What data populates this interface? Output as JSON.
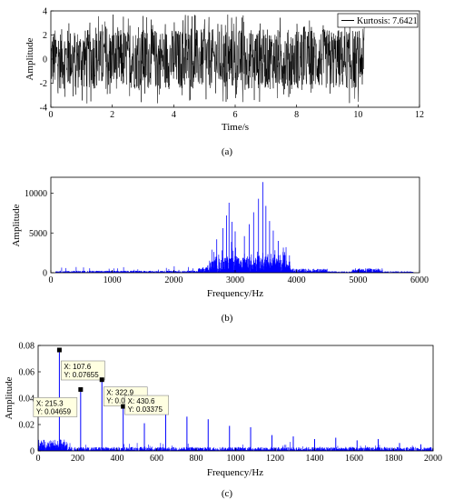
{
  "chart_data": [
    {
      "id": "a",
      "type": "line",
      "panel_label": "(a)",
      "xlabel": "Time/s",
      "ylabel": "Amplitude",
      "xlim": [
        0,
        12
      ],
      "ylim": [
        -4,
        4
      ],
      "xticks": [
        "0",
        "2",
        "4",
        "6",
        "8",
        "10",
        "12"
      ],
      "yticks": [
        "-4",
        "-2",
        "0",
        "2",
        "4"
      ],
      "signal": {
        "t_start": 0,
        "t_end": 10.2,
        "envelope_typical": 2.5,
        "envelope_peak": 3.7,
        "color": "#000000"
      },
      "legend": {
        "text": "Kurtosis: 7.6421",
        "position": "top-right"
      },
      "grid": false
    },
    {
      "id": "b",
      "type": "line",
      "panel_label": "(b)",
      "xlabel": "Frequency/Hz",
      "ylabel": "Amplitude",
      "xlim": [
        0,
        6000
      ],
      "ylim": [
        0,
        12000
      ],
      "xticks": [
        "0",
        "1000",
        "2000",
        "3000",
        "4000",
        "5000",
        "6000"
      ],
      "yticks": [
        "0",
        "5000",
        "10000"
      ],
      "color": "#0000ff",
      "peaks": [
        {
          "x": 2700,
          "y": 4200
        },
        {
          "x": 2800,
          "y": 5600
        },
        {
          "x": 2860,
          "y": 7200
        },
        {
          "x": 2900,
          "y": 8800
        },
        {
          "x": 2950,
          "y": 6400
        },
        {
          "x": 3000,
          "y": 5200
        },
        {
          "x": 3150,
          "y": 4600
        },
        {
          "x": 3230,
          "y": 6100
        },
        {
          "x": 3300,
          "y": 7600
        },
        {
          "x": 3380,
          "y": 9300
        },
        {
          "x": 3450,
          "y": 11400
        },
        {
          "x": 3500,
          "y": 8400
        },
        {
          "x": 3560,
          "y": 6500
        },
        {
          "x": 3620,
          "y": 5300
        },
        {
          "x": 3700,
          "y": 4000
        },
        {
          "x": 3780,
          "y": 2600
        }
      ],
      "grid": false
    },
    {
      "id": "c",
      "type": "line",
      "panel_label": "(c)",
      "xlabel": "Frequency/Hz",
      "ylabel": "Amplitude",
      "xlim": [
        0,
        2000
      ],
      "ylim": [
        0,
        0.08
      ],
      "xticks": [
        "0",
        "200",
        "400",
        "600",
        "800",
        "1000",
        "1200",
        "1400",
        "1600",
        "1800",
        "2000"
      ],
      "yticks": [
        "0",
        "0.02",
        "0.04",
        "0.06",
        "0.08"
      ],
      "color": "#0000ff",
      "peaks": [
        {
          "x": 107.6,
          "y": 0.07655
        },
        {
          "x": 215.3,
          "y": 0.04659
        },
        {
          "x": 322.9,
          "y": 0.05401
        },
        {
          "x": 430.6,
          "y": 0.03375
        },
        {
          "x": 538.0,
          "y": 0.021
        },
        {
          "x": 645.8,
          "y": 0.034
        },
        {
          "x": 753.5,
          "y": 0.026
        },
        {
          "x": 861.0,
          "y": 0.024
        },
        {
          "x": 969.0,
          "y": 0.019
        },
        {
          "x": 1076.0,
          "y": 0.018
        },
        {
          "x": 1184.0,
          "y": 0.012
        },
        {
          "x": 1292.0,
          "y": 0.011
        },
        {
          "x": 1400.0,
          "y": 0.009
        },
        {
          "x": 1507.0,
          "y": 0.01
        },
        {
          "x": 1615.0,
          "y": 0.008
        },
        {
          "x": 1722.0,
          "y": 0.009
        },
        {
          "x": 1830.0,
          "y": 0.006
        },
        {
          "x": 1938.0,
          "y": 0.005
        }
      ],
      "datatips": [
        {
          "x_text": "X: 107.6",
          "y_text": "Y: 0.07655",
          "x": 107.6,
          "y": 0.07655
        },
        {
          "x_text": "X: 215.3",
          "y_text": "Y: 0.04659",
          "x": 215.3,
          "y": 0.04659
        },
        {
          "x_text": "X: 322.9",
          "y_text": "Y: 0.05401",
          "x": 322.9,
          "y": 0.05401
        },
        {
          "x_text": "X: 430.6",
          "y_text": "Y: 0.03375",
          "x": 430.6,
          "y": 0.03375
        }
      ],
      "grid": false
    }
  ]
}
